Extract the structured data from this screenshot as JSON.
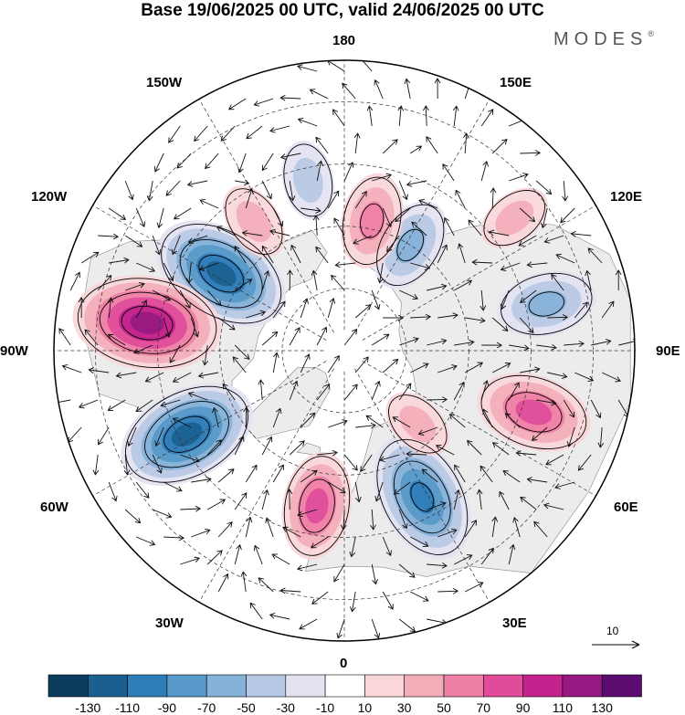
{
  "title": "Base 19/06/2025 00 UTC, valid 24/06/2025 00 UTC",
  "brand": "MODES",
  "brand_mark": "®",
  "longitude_labels": {
    "lon_180": "180",
    "lon_150e": "150E",
    "lon_120e": "120E",
    "lon_90e": "90E",
    "lon_60e": "60E",
    "lon_30e": "30E",
    "lon_0": "0",
    "lon_30w": "30W",
    "lon_60w": "60W",
    "lon_90w": "90W",
    "lon_120w": "120W",
    "lon_150w": "150W"
  },
  "vector_scale": {
    "label": "10"
  },
  "colorbar": {
    "colors": [
      "#0d3d5e",
      "#1a5f8f",
      "#2f7db8",
      "#5799c9",
      "#86b1d8",
      "#b7c9e4",
      "#e2e2f1",
      "#ffffff",
      "#f9d6d9",
      "#f3adb9",
      "#ee7fa6",
      "#e04c99",
      "#c2238d",
      "#961981",
      "#5c0b71"
    ],
    "ticks": [
      "-130",
      "-110",
      "-90",
      "-70",
      "-50",
      "-30",
      "-10",
      "10",
      "30",
      "50",
      "70",
      "90",
      "110",
      "130"
    ]
  },
  "anomaly_centers": [
    {
      "lon": -122,
      "lat": 55,
      "value": -110
    },
    {
      "lon": -98,
      "lat": 42,
      "value": 120
    },
    {
      "lon": -62,
      "lat": 47,
      "value": -110
    },
    {
      "lon": -10,
      "lat": 52,
      "value": 70
    },
    {
      "lon": 28,
      "lat": 50,
      "value": -100
    },
    {
      "lon": 72,
      "lat": 42,
      "value": 80
    },
    {
      "lon": 103,
      "lat": 40,
      "value": -60
    },
    {
      "lon": 148,
      "lat": 60,
      "value": -55
    },
    {
      "lon": 168,
      "lat": 58,
      "value": 55
    },
    {
      "lon": -168,
      "lat": 48,
      "value": -35
    },
    {
      "lon": -145,
      "lat": 52,
      "value": 35
    },
    {
      "lon": 128,
      "lat": 38,
      "value": 30
    },
    {
      "lon": 45,
      "lat": 65,
      "value": 30
    }
  ]
}
